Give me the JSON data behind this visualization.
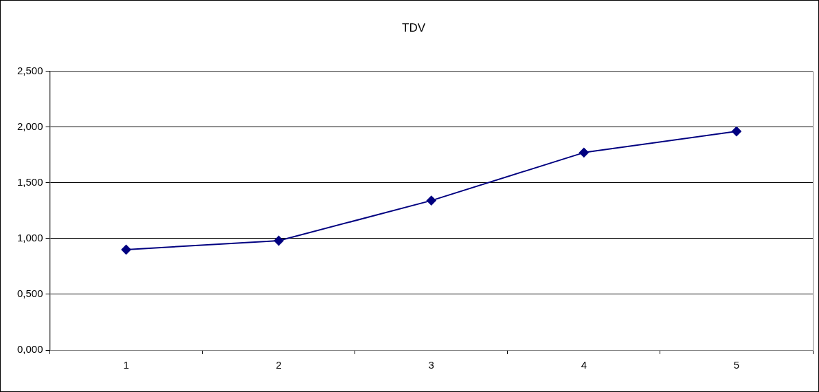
{
  "chart_data": {
    "type": "line",
    "title": "TDV",
    "categories": [
      "1",
      "2",
      "3",
      "4",
      "5"
    ],
    "series": [
      {
        "color": "#000080",
        "values": [
          0.9,
          0.98,
          1.34,
          1.77,
          1.96
        ]
      }
    ],
    "ylim": [
      0,
      2.5
    ],
    "yticks": [
      {
        "value": 0,
        "label": "0,000"
      },
      {
        "value": 0.5,
        "label": "0,500"
      },
      {
        "value": 1,
        "label": "1,000"
      },
      {
        "value": 1.5,
        "label": "1,500"
      },
      {
        "value": 2,
        "label": "2,000"
      },
      {
        "value": 2.5,
        "label": "2,500"
      }
    ],
    "grid": "y",
    "legend": false,
    "marker": "diamond",
    "line_style": "solid"
  }
}
